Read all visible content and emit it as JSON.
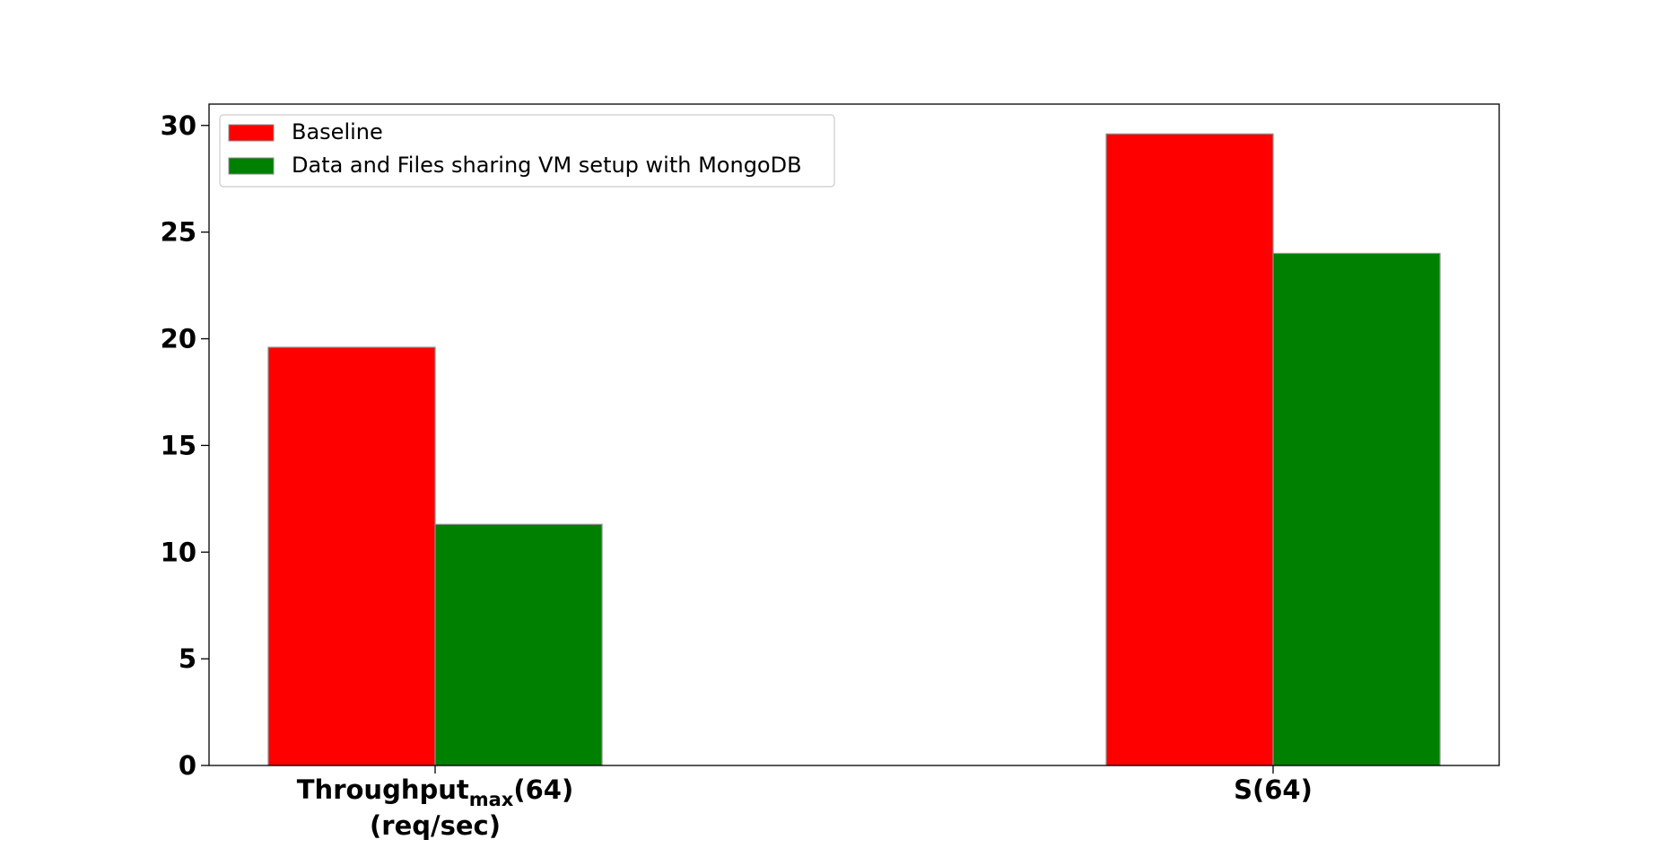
{
  "chart_data": {
    "type": "bar",
    "title": "",
    "xlabel": "",
    "ylabel": "",
    "ylim": [
      0,
      31
    ],
    "yticks": [
      0,
      5,
      10,
      15,
      20,
      25,
      30
    ],
    "grid": false,
    "legend_position": "top-left",
    "categories": [
      {
        "main": "Throughput",
        "sub": "max",
        "suffix": "(64)",
        "line2": "(req/sec)"
      },
      {
        "main": "S(64)",
        "sub": "",
        "suffix": "",
        "line2": ""
      }
    ],
    "series": [
      {
        "name": "Baseline",
        "color": "#ff0000",
        "values": [
          19.6,
          29.6
        ]
      },
      {
        "name": "Data and Files sharing VM setup with MongoDB",
        "color": "#008000",
        "values": [
          11.3,
          24.0
        ]
      }
    ]
  }
}
